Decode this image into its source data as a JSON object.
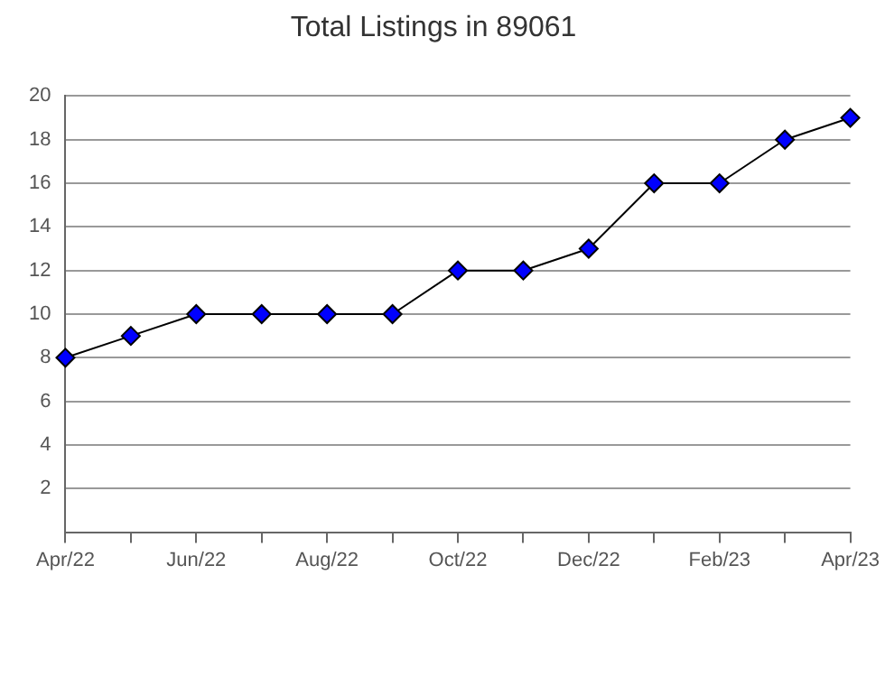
{
  "chart_data": {
    "type": "line",
    "title": "Total Listings in 89061",
    "categories": [
      "Apr/22",
      null,
      "Jun/22",
      null,
      "Aug/22",
      null,
      "Oct/22",
      null,
      "Dec/22",
      null,
      "Feb/23",
      null,
      "Apr/23"
    ],
    "series": [
      {
        "color": "#0000ff",
        "values": [
          8,
          9,
          10,
          10,
          10,
          10,
          12,
          12,
          13,
          16,
          16,
          18,
          19
        ]
      }
    ],
    "ylim": [
      0,
      20
    ],
    "yticks": [
      {
        "value": 0,
        "label": null
      },
      2,
      4,
      6,
      8,
      10,
      12,
      14,
      16,
      18,
      20
    ],
    "grid": "y",
    "legend": false,
    "marker": "diamond",
    "line_style": "solid"
  }
}
